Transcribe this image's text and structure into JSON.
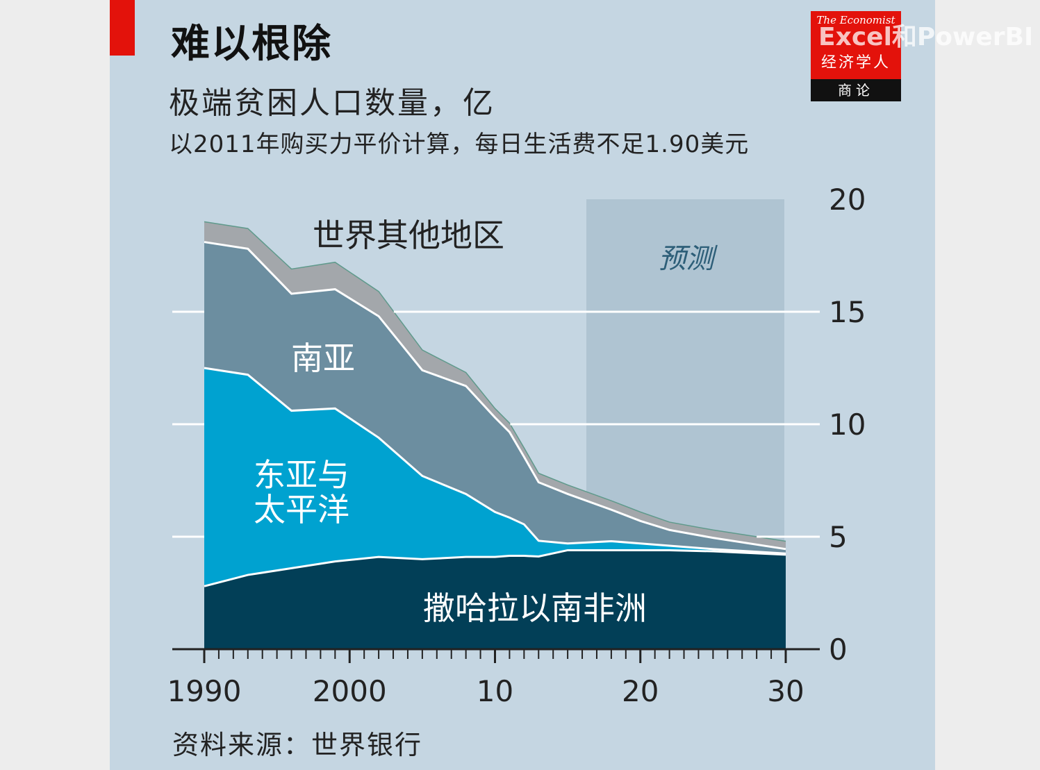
{
  "header": {
    "title": "难以根除",
    "subtitle": "极端贫困人口数量，亿",
    "note": "以2011年购买力平价计算，每日生活费不足1.90美元"
  },
  "logo": {
    "top_text": "The Economist",
    "name_zh": "经济学人",
    "bar_text": "商论"
  },
  "watermark": "Excel和PowerBI",
  "footer": {
    "source": "资料来源：世界银行"
  },
  "colors": {
    "panel": "#c5d6e2",
    "forecast_band": "#afc4d2",
    "africa": "#023f57",
    "east_asia": "#00a2d0",
    "south_asia": "#6c8ea0",
    "rest": "#a3a7ab",
    "accent_red": "#e3120b",
    "grid": "#ffffff"
  },
  "chart_data": {
    "type": "area",
    "stacked": true,
    "x": [
      1990,
      1993,
      1996,
      1999,
      2002,
      2005,
      2008,
      2010,
      2011,
      2012,
      2013,
      2015,
      2018,
      2020,
      2022,
      2025,
      2030
    ],
    "ylim": [
      0,
      20
    ],
    "yticks": [
      0,
      5,
      10,
      15,
      20
    ],
    "xticks": [
      1990,
      2000,
      2010,
      2020,
      2030
    ],
    "xtick_labels": [
      "1990",
      "2000",
      "10",
      "20",
      "30"
    ],
    "grid": "horizontal",
    "forecast": {
      "from": 2016,
      "to": 2030,
      "label": "预测"
    },
    "series": [
      {
        "name": "撒哈拉以南非洲",
        "values": [
          2.8,
          3.3,
          3.6,
          3.9,
          4.1,
          4.0,
          4.1,
          4.1,
          4.15,
          4.15,
          4.12,
          4.4,
          4.4,
          4.4,
          4.4,
          4.35,
          4.2
        ]
      },
      {
        "name": "东亚与太平洋",
        "values": [
          9.7,
          8.9,
          7.0,
          6.8,
          5.3,
          3.7,
          2.8,
          2.0,
          1.7,
          1.4,
          0.7,
          0.3,
          0.4,
          0.3,
          0.2,
          0.1,
          0.05
        ]
      },
      {
        "name": "南亚",
        "values": [
          5.6,
          5.6,
          5.2,
          5.3,
          5.4,
          4.7,
          4.8,
          4.2,
          3.8,
          3.0,
          2.6,
          2.2,
          1.4,
          1.0,
          0.7,
          0.5,
          0.2
        ]
      },
      {
        "name": "世界其他地区",
        "values": [
          0.9,
          0.9,
          1.1,
          1.2,
          1.1,
          0.9,
          0.6,
          0.4,
          0.4,
          0.4,
          0.4,
          0.4,
          0.4,
          0.4,
          0.35,
          0.35,
          0.35
        ]
      }
    ]
  }
}
